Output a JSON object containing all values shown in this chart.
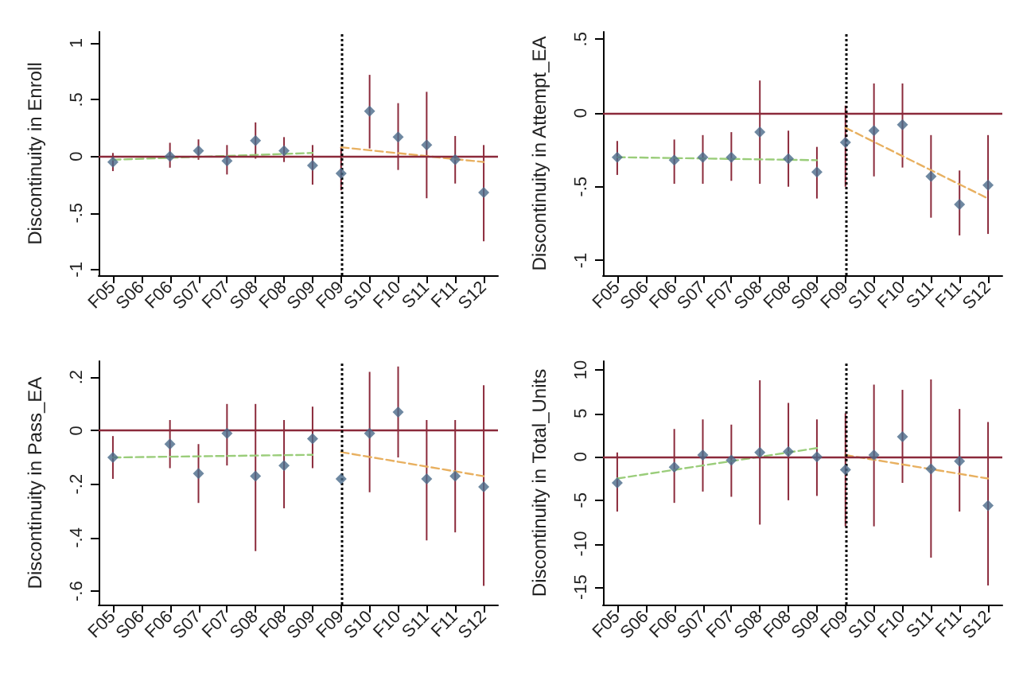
{
  "chart_data": [
    {
      "type": "scatter",
      "ylabel": "Discontinuity in Enroll",
      "categories": [
        "F05",
        "S06",
        "F06",
        "S07",
        "F07",
        "S08",
        "F08",
        "S09",
        "F09",
        "S10",
        "F10",
        "S11",
        "F11",
        "S12"
      ],
      "ylim": [
        -1.05,
        1.1
      ],
      "yticks": [
        -1,
        {
          "value": -0.5,
          "label": "-.5"
        },
        0,
        {
          "value": 0.5,
          "label": ".5"
        },
        1
      ],
      "grid": false,
      "series": [
        {
          "marker": "diamond",
          "color": "#4a6a8a",
          "values": [
            -0.05,
            null,
            0.0,
            0.05,
            -0.04,
            0.14,
            0.05,
            -0.08,
            -0.15,
            0.4,
            0.17,
            0.1,
            -0.03,
            -0.32
          ],
          "errors": [
            [
              -0.13,
              0.03
            ],
            null,
            [
              -0.1,
              0.12
            ],
            [
              -0.03,
              0.15
            ],
            [
              -0.16,
              0.1
            ],
            [
              -0.02,
              0.3
            ],
            [
              -0.05,
              0.17
            ],
            [
              -0.25,
              0.1
            ],
            [
              -0.3,
              0.08
            ],
            [
              0.07,
              0.72
            ],
            [
              -0.12,
              0.47
            ],
            [
              -0.37,
              0.57
            ],
            [
              -0.24,
              0.18
            ],
            [
              -0.75,
              0.1
            ]
          ]
        },
        {
          "type": "line",
          "marker": "none",
          "color": "#9acd7a",
          "line_style": "dashed",
          "x": [
            "F05",
            "S09"
          ],
          "values": [
            -0.03,
            0.03
          ]
        },
        {
          "type": "line",
          "marker": "none",
          "color": "#e8b060",
          "line_style": "dashed",
          "x": [
            "F09",
            "S12"
          ],
          "values": [
            0.08,
            -0.05
          ]
        }
      ],
      "ref_lines": [
        {
          "axis": "y",
          "value": 0,
          "color": "#8b2a3b",
          "line_style": "solid"
        },
        {
          "axis": "x",
          "value": "F09",
          "color": "#000000",
          "line_style": "dotted"
        }
      ]
    },
    {
      "type": "scatter",
      "ylabel": "Discontinuity in Attempt_EA",
      "categories": [
        "F05",
        "S06",
        "F06",
        "S07",
        "F07",
        "S08",
        "F08",
        "S09",
        "F09",
        "S10",
        "F10",
        "S11",
        "F11",
        "S12"
      ],
      "ylim": [
        -1.1,
        0.55
      ],
      "yticks": [
        -1,
        {
          "value": -0.5,
          "label": "-.5"
        },
        0,
        {
          "value": 0.5,
          "label": ".5"
        }
      ],
      "grid": false,
      "series": [
        {
          "marker": "diamond",
          "color": "#4a6a8a",
          "values": [
            -0.3,
            null,
            -0.32,
            -0.3,
            -0.3,
            -0.13,
            -0.31,
            -0.4,
            -0.2,
            -0.12,
            -0.08,
            -0.43,
            -0.62,
            -0.49
          ],
          "errors": [
            [
              -0.42,
              -0.19
            ],
            null,
            [
              -0.48,
              -0.18
            ],
            [
              -0.48,
              -0.15
            ],
            [
              -0.46,
              -0.13
            ],
            [
              -0.48,
              0.22
            ],
            [
              -0.5,
              -0.12
            ],
            [
              -0.58,
              -0.23
            ],
            [
              -0.5,
              0.05
            ],
            [
              -0.43,
              0.2
            ],
            [
              -0.37,
              0.2
            ],
            [
              -0.71,
              -0.15
            ],
            [
              -0.83,
              -0.39
            ],
            [
              -0.82,
              -0.15
            ]
          ]
        },
        {
          "type": "line",
          "marker": "none",
          "color": "#9acd7a",
          "line_style": "dashed",
          "x": [
            "F05",
            "S09"
          ],
          "values": [
            -0.3,
            -0.32
          ]
        },
        {
          "type": "line",
          "marker": "none",
          "color": "#e8b060",
          "line_style": "dashed",
          "x": [
            "F09",
            "S12"
          ],
          "values": [
            -0.1,
            -0.58
          ]
        }
      ],
      "ref_lines": [
        {
          "axis": "y",
          "value": 0,
          "color": "#8b2a3b",
          "line_style": "solid"
        },
        {
          "axis": "x",
          "value": "F09",
          "color": "#000000",
          "line_style": "dotted"
        }
      ]
    },
    {
      "type": "scatter",
      "ylabel": "Discontinuity in Pass_EA",
      "categories": [
        "F05",
        "S06",
        "F06",
        "S07",
        "F07",
        "S08",
        "F08",
        "S09",
        "F09",
        "S10",
        "F10",
        "S11",
        "F11",
        "S12"
      ],
      "ylim": [
        -0.65,
        0.26
      ],
      "yticks": [
        {
          "value": -0.6,
          "label": "-.6"
        },
        {
          "value": -0.4,
          "label": "-.4"
        },
        {
          "value": -0.2,
          "label": "-.2"
        },
        0,
        {
          "value": 0.2,
          "label": ".2"
        }
      ],
      "grid": false,
      "series": [
        {
          "marker": "diamond",
          "color": "#4a6a8a",
          "values": [
            -0.1,
            null,
            -0.05,
            -0.16,
            -0.01,
            -0.17,
            -0.13,
            -0.03,
            -0.18,
            -0.01,
            0.07,
            -0.18,
            -0.17,
            -0.21
          ],
          "errors": [
            [
              -0.18,
              -0.02
            ],
            null,
            [
              -0.14,
              0.04
            ],
            [
              -0.27,
              -0.05
            ],
            [
              -0.13,
              0.1
            ],
            [
              -0.45,
              0.1
            ],
            [
              -0.29,
              0.04
            ],
            [
              -0.14,
              0.09
            ],
            null,
            [
              -0.23,
              0.22
            ],
            [
              -0.1,
              0.24
            ],
            [
              -0.41,
              0.04
            ],
            [
              -0.38,
              0.04
            ],
            [
              -0.58,
              0.17
            ]
          ]
        },
        {
          "type": "line",
          "marker": "none",
          "color": "#9acd7a",
          "line_style": "dashed",
          "x": [
            "F05",
            "S09"
          ],
          "values": [
            -0.1,
            -0.09
          ]
        },
        {
          "type": "line",
          "marker": "none",
          "color": "#e8b060",
          "line_style": "dashed",
          "x": [
            "F09",
            "S12"
          ],
          "values": [
            -0.08,
            -0.17
          ]
        }
      ],
      "ref_lines": [
        {
          "axis": "y",
          "value": 0,
          "color": "#8b2a3b",
          "line_style": "solid"
        },
        {
          "axis": "x",
          "value": "F09",
          "color": "#000000",
          "line_style": "dotted"
        }
      ]
    },
    {
      "type": "scatter",
      "ylabel": "Discontinuity in Total_Units",
      "categories": [
        "F05",
        "S06",
        "F06",
        "S07",
        "F07",
        "S08",
        "F08",
        "S09",
        "F09",
        "S10",
        "F10",
        "S11",
        "F11",
        "S12"
      ],
      "ylim": [
        -17,
        11
      ],
      "yticks": [
        -15,
        -10,
        -5,
        0,
        5,
        10
      ],
      "grid": false,
      "series": [
        {
          "marker": "diamond",
          "color": "#4a6a8a",
          "values": [
            -3,
            null,
            -1.2,
            0.2,
            -0.4,
            0.5,
            0.6,
            0,
            -1.5,
            0.2,
            2.3,
            -1.4,
            -0.5,
            -5.6
          ],
          "errors": [
            [
              -6.3,
              0.5
            ],
            null,
            [
              -5.3,
              3.2
            ],
            [
              -4,
              4.3
            ],
            [
              -4.6,
              3.7
            ],
            [
              -7.8,
              8.8
            ],
            [
              -5,
              6.2
            ],
            [
              -4.5,
              4.3
            ],
            [
              -8,
              5
            ],
            [
              -8,
              8.3
            ],
            [
              -3,
              7.7
            ],
            [
              -11.6,
              8.9
            ],
            [
              -6.3,
              5.5
            ],
            [
              -14.8,
              4
            ]
          ]
        },
        {
          "type": "line",
          "marker": "none",
          "color": "#9acd7a",
          "line_style": "dashed",
          "x": [
            "F05",
            "S09"
          ],
          "values": [
            -2.5,
            1
          ]
        },
        {
          "type": "line",
          "marker": "none",
          "color": "#e8b060",
          "line_style": "dashed",
          "x": [
            "F09",
            "S12"
          ],
          "values": [
            0.2,
            -2.5
          ]
        }
      ],
      "ref_lines": [
        {
          "axis": "y",
          "value": 0,
          "color": "#8b2a3b",
          "line_style": "solid"
        },
        {
          "axis": "x",
          "value": "F09",
          "color": "#000000",
          "line_style": "dotted"
        }
      ]
    }
  ]
}
